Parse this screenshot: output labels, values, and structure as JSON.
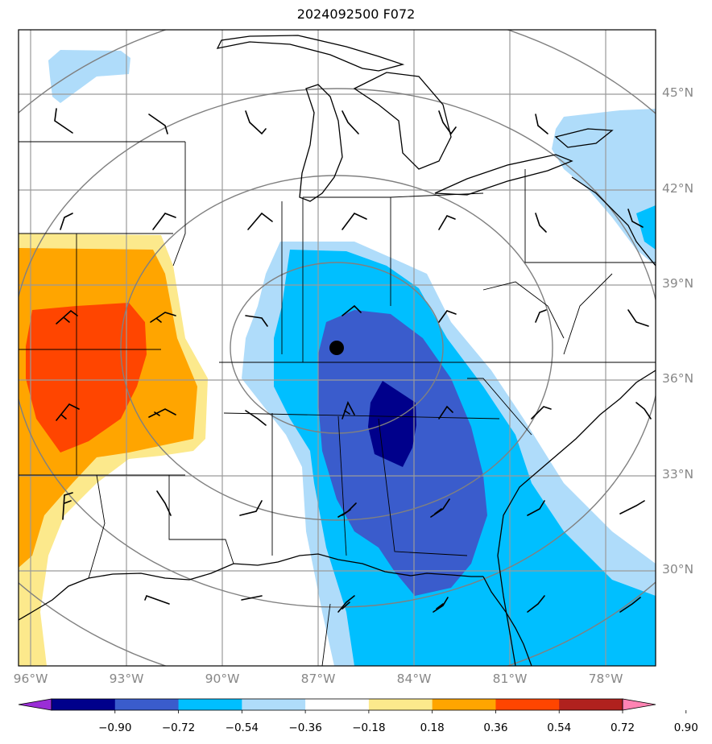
{
  "title": "2024092500 F072",
  "lat_labels": [
    "45°N",
    "42°N",
    "39°N",
    "36°N",
    "33°N",
    "30°N"
  ],
  "lon_labels": [
    "96°W",
    "93°W",
    "90°W",
    "87°W",
    "84°W",
    "81°W",
    "78°W"
  ],
  "colorbar": {
    "ticks": [
      "−0.90",
      "−0.72",
      "−0.54",
      "−0.36",
      "−0.18",
      "0.18",
      "0.36",
      "0.54",
      "0.72",
      "0.90"
    ],
    "colors": [
      "#9a2dd6",
      "#00008b",
      "#3a5ccc",
      "#00bfff",
      "#afdcfa",
      "#ffffff",
      "#fce98c",
      "#ffa500",
      "#ff4500",
      "#b0211e",
      "#ff84b3"
    ]
  },
  "colors": {
    "grid": "#9a9a9a",
    "range_rings": "#808080",
    "coast": "#000000"
  }
}
